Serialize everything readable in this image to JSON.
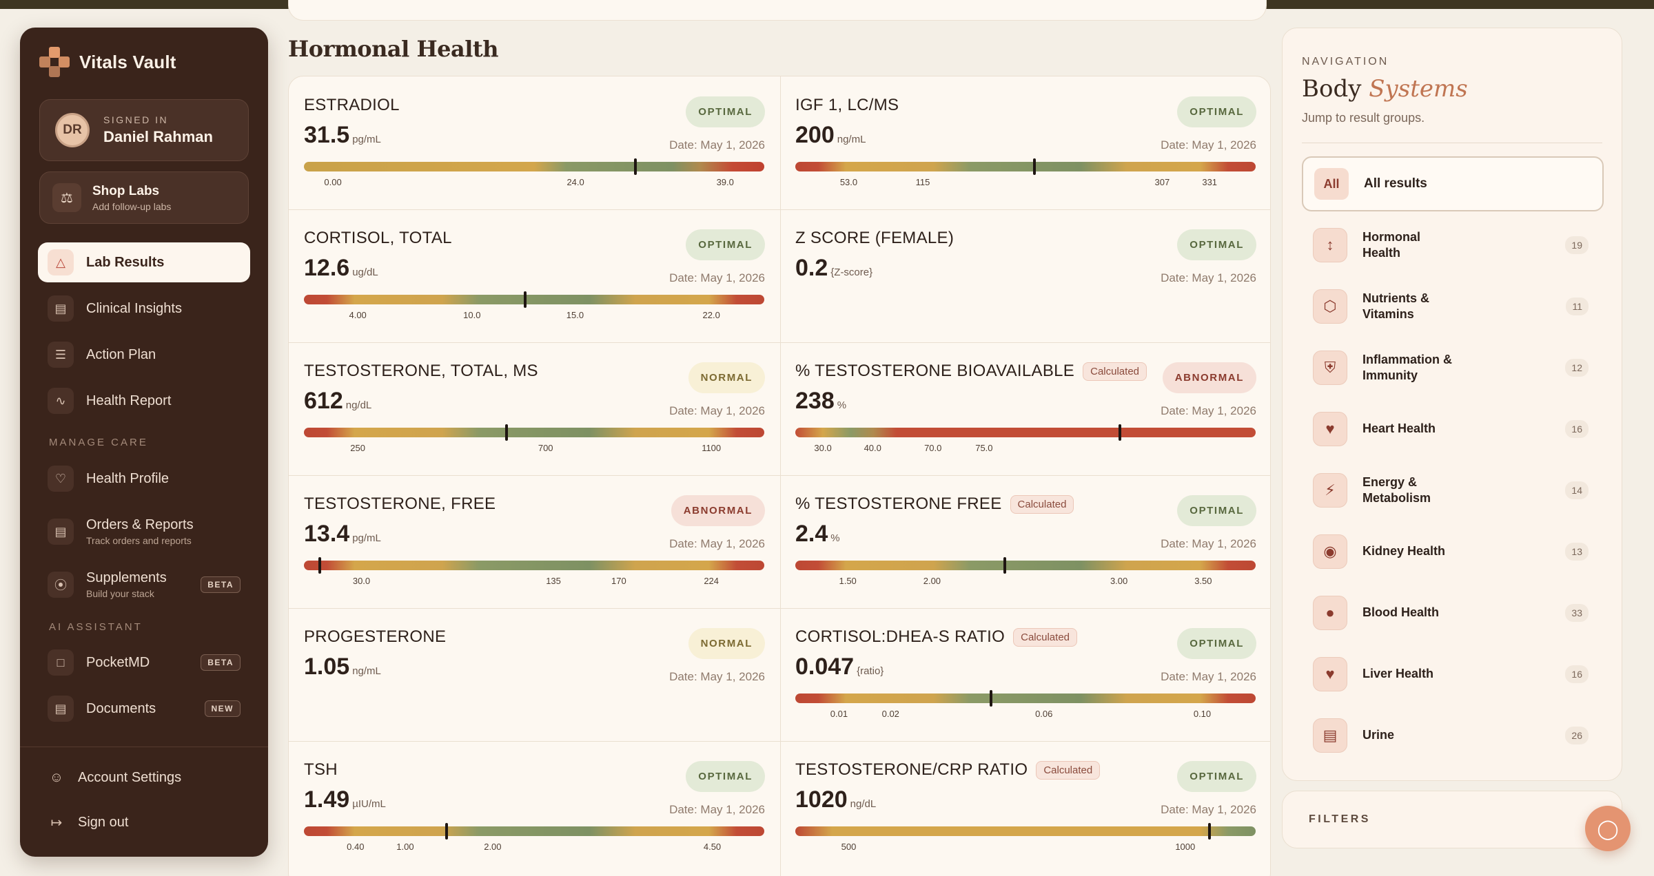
{
  "brand": {
    "name": "Vitals Vault"
  },
  "user": {
    "signed_in_label": "SIGNED IN",
    "initials": "DR",
    "name": "Daniel Rahman"
  },
  "shop": {
    "title": "Shop Labs",
    "subtitle": "Add follow-up labs"
  },
  "nav": {
    "main": [
      {
        "label": "Lab Results",
        "icon": "flask-icon"
      },
      {
        "label": "Clinical Insights",
        "icon": "clipboard-icon"
      },
      {
        "label": "Action Plan",
        "icon": "checklist-icon"
      },
      {
        "label": "Health Report",
        "icon": "pulse-icon"
      }
    ],
    "manage_label": "MANAGE CARE",
    "manage": [
      {
        "label": "Health Profile"
      },
      {
        "label": "Orders & Reports",
        "sub": "Track orders and reports"
      },
      {
        "label": "Supplements",
        "sub": "Build your stack",
        "badge": "BETA"
      }
    ],
    "ai_label": "AI ASSISTANT",
    "ai": [
      {
        "label": "PocketMD",
        "badge": "BETA"
      },
      {
        "label": "Documents",
        "badge": "NEW"
      }
    ],
    "account": "Account Settings",
    "signout": "Sign out"
  },
  "main": {
    "title": "Hormonal Health",
    "tests": [
      {
        "name": "ESTRADIOL",
        "value": "31.5",
        "unit": "pg/mL",
        "status": "OPTIMAL",
        "date": "Date: May 1, 2026",
        "ticks": [
          "0.00",
          "24.0",
          "39.0"
        ],
        "tick_pos": [
          0.063,
          0.59,
          0.915
        ],
        "marker": 0.72,
        "zones": "low-opt-high"
      },
      {
        "name": "IGF 1, LC/MS",
        "value": "200",
        "unit": "ng/mL",
        "status": "OPTIMAL",
        "date": "Date: May 1, 2026",
        "ticks": [
          "53.0",
          "115",
          "307",
          "331"
        ],
        "tick_pos": [
          0.116,
          0.277,
          0.797,
          0.9
        ],
        "marker": 0.52,
        "zones": "rim"
      },
      {
        "name": "CORTISOL, TOTAL",
        "value": "12.6",
        "unit": "ug/dL",
        "status": "OPTIMAL",
        "date": "Date: May 1, 2026",
        "ticks": [
          "4.00",
          "10.0",
          "15.0",
          "22.0"
        ],
        "tick_pos": [
          0.117,
          0.365,
          0.589,
          0.885
        ],
        "marker": 0.48,
        "zones": "rim"
      },
      {
        "name": "Z SCORE (FEMALE)",
        "value": "0.2",
        "unit": "{Z-score}",
        "status": "OPTIMAL",
        "date": "Date: May 1, 2026"
      },
      {
        "name": "TESTOSTERONE, TOTAL, MS",
        "value": "612",
        "unit": "ng/dL",
        "status": "NORMAL",
        "date": "Date: May 1, 2026",
        "ticks": [
          "250",
          "700",
          "1100"
        ],
        "tick_pos": [
          0.117,
          0.525,
          0.885
        ],
        "marker": 0.44,
        "zones": "rim"
      },
      {
        "name": "% TESTOSTERONE BIOAVAILABLE",
        "calc": "Calculated",
        "value": "238",
        "unit": "%",
        "status": "ABNORMAL",
        "date": "Date: May 1, 2026",
        "ticks": [
          "30.0",
          "40.0",
          "70.0",
          "75.0"
        ],
        "tick_pos": [
          0.06,
          0.168,
          0.299,
          0.41
        ],
        "marker": 0.705,
        "zones": "bio"
      },
      {
        "name": "TESTOSTERONE, FREE",
        "value": "13.4",
        "unit": "pg/mL",
        "status": "ABNORMAL",
        "date": "Date: May 1, 2026",
        "ticks": [
          "30.0",
          "135",
          "170",
          "224"
        ],
        "tick_pos": [
          0.125,
          0.542,
          0.684,
          0.885
        ],
        "marker": 0.035,
        "zones": "rim"
      },
      {
        "name": "% TESTOSTERONE FREE",
        "calc": "Calculated",
        "value": "2.4",
        "unit": "%",
        "status": "OPTIMAL",
        "date": "Date: May 1, 2026",
        "ticks": [
          "1.50",
          "2.00",
          "3.00",
          "3.50"
        ],
        "tick_pos": [
          0.114,
          0.297,
          0.703,
          0.886
        ],
        "marker": 0.455,
        "zones": "rim"
      },
      {
        "name": "PROGESTERONE",
        "value": "1.05",
        "unit": "ng/mL",
        "status": "NORMAL",
        "date": "Date: May 1, 2026"
      },
      {
        "name": "CORTISOL:DHEA-S RATIO",
        "calc": "Calculated",
        "value": "0.047",
        "unit": "{ratio}",
        "status": "OPTIMAL",
        "date": "Date: May 1, 2026",
        "ticks": [
          "0.01",
          "0.02",
          "0.06",
          "0.10"
        ],
        "tick_pos": [
          0.095,
          0.207,
          0.54,
          0.884
        ],
        "marker": 0.425,
        "zones": "rim"
      },
      {
        "name": "TSH",
        "value": "1.49",
        "unit": "µIU/mL",
        "status": "OPTIMAL",
        "date": "Date: May 1, 2026",
        "ticks": [
          "0.40",
          "1.00",
          "2.00",
          "4.50"
        ],
        "tick_pos": [
          0.112,
          0.22,
          0.41,
          0.887
        ],
        "marker": 0.31,
        "zones": "rim"
      },
      {
        "name": "TESTOSTERONE/CRP RATIO",
        "calc": "Calculated",
        "value": "1020",
        "unit": "ng/dL",
        "status": "OPTIMAL",
        "date": "Date: May 1, 2026",
        "ticks": [
          "500",
          "1000"
        ],
        "tick_pos": [
          0.116,
          0.847
        ],
        "marker": 0.9,
        "zones": "tail"
      }
    ]
  },
  "panel": {
    "kicker": "NAVIGATION",
    "title_a": "Body",
    "title_b": "Systems",
    "subtitle": "Jump to result groups.",
    "all_chip": "All",
    "all_label": "All results",
    "systems": [
      {
        "label": "Hormonal Health",
        "count": "19",
        "icon": "hormone-icon"
      },
      {
        "label": "Nutrients & Vitamins",
        "count": "11",
        "icon": "hexagon-icon"
      },
      {
        "label": "Inflammation & Immunity",
        "count": "12",
        "icon": "shield-icon"
      },
      {
        "label": "Heart Health",
        "count": "16",
        "icon": "heart-icon"
      },
      {
        "label": "Energy & Metabolism",
        "count": "14",
        "icon": "bolt-icon"
      },
      {
        "label": "Kidney Health",
        "count": "13",
        "icon": "kidney-icon"
      },
      {
        "label": "Blood Health",
        "count": "33",
        "icon": "drop-icon"
      },
      {
        "label": "Liver Health",
        "count": "16",
        "icon": "liver-icon"
      },
      {
        "label": "Urine",
        "count": "26",
        "icon": "urine-icon"
      }
    ]
  },
  "filters": {
    "label": "FILTERS"
  }
}
